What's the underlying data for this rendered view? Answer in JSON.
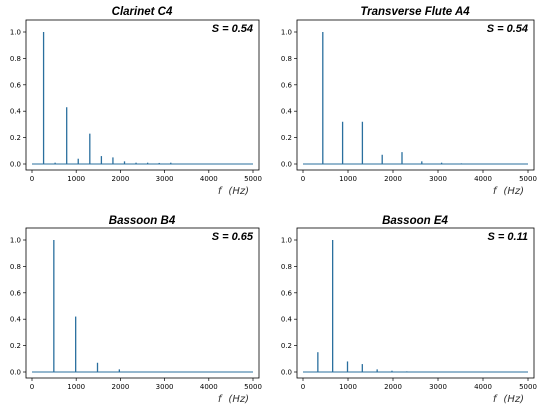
{
  "chart_data": [
    {
      "type": "line",
      "title": "Clarinet C4",
      "annotation": "S = 0.54",
      "xlabel_main": "f",
      "xlabel_unit": "(Hz)",
      "xlim": [
        0,
        5000
      ],
      "ylim": [
        0,
        1.0
      ],
      "xticks": [
        0,
        1000,
        2000,
        3000,
        4000,
        5000
      ],
      "yticks": [
        0.0,
        0.2,
        0.4,
        0.6,
        0.8,
        1.0
      ],
      "ytick_labels": [
        "0.0",
        "0.2",
        "0.4",
        "0.6",
        "0.8",
        "1.0"
      ],
      "peaks": {
        "x": [
          262,
          523,
          785,
          1046,
          1308,
          1570,
          1831,
          2093,
          2354,
          2616,
          2878,
          3140
        ],
        "y": [
          1.0,
          0.01,
          0.43,
          0.04,
          0.23,
          0.06,
          0.05,
          0.02,
          0.01,
          0.01,
          0.008,
          0.01
        ]
      },
      "color": "#2a6f9e"
    },
    {
      "type": "line",
      "title": "Transverse Flute A4",
      "annotation": "S = 0.54",
      "xlabel_main": "f",
      "xlabel_unit": "(Hz)",
      "xlim": [
        0,
        5000
      ],
      "ylim": [
        0,
        1.0
      ],
      "xticks": [
        0,
        1000,
        2000,
        3000,
        4000,
        5000
      ],
      "yticks": [
        0.0,
        0.2,
        0.4,
        0.6,
        0.8,
        1.0
      ],
      "ytick_labels": [
        "0.0",
        "0.2",
        "0.4",
        "0.6",
        "0.8",
        "1.0"
      ],
      "peaks": {
        "x": [
          440,
          880,
          1320,
          1760,
          2200,
          2640,
          3080,
          3520
        ],
        "y": [
          1.0,
          0.32,
          0.32,
          0.07,
          0.09,
          0.02,
          0.01,
          0.005
        ]
      },
      "color": "#2a6f9e"
    },
    {
      "type": "line",
      "title": "Bassoon B4",
      "annotation": "S = 0.65",
      "xlabel_main": "f",
      "xlabel_unit": "(Hz)",
      "xlim": [
        0,
        5000
      ],
      "ylim": [
        0,
        1.0
      ],
      "xticks": [
        0,
        1000,
        2000,
        3000,
        4000,
        5000
      ],
      "yticks": [
        0.0,
        0.2,
        0.4,
        0.6,
        0.8,
        1.0
      ],
      "ytick_labels": [
        "0.0",
        "0.2",
        "0.4",
        "0.6",
        "0.8",
        "1.0"
      ],
      "peaks": {
        "x": [
          494,
          988,
          1482,
          1976
        ],
        "y": [
          1.0,
          0.42,
          0.07,
          0.02
        ]
      },
      "color": "#2a6f9e"
    },
    {
      "type": "line",
      "title": "Bassoon E4",
      "annotation": "S = 0.11",
      "xlabel_main": "f",
      "xlabel_unit": "(Hz)",
      "xlim": [
        0,
        5000
      ],
      "ylim": [
        0,
        1.0
      ],
      "xticks": [
        0,
        1000,
        2000,
        3000,
        4000,
        5000
      ],
      "yticks": [
        0.0,
        0.2,
        0.4,
        0.6,
        0.8,
        1.0
      ],
      "ytick_labels": [
        "0.0",
        "0.2",
        "0.4",
        "0.6",
        "0.8",
        "1.0"
      ],
      "peaks": {
        "x": [
          330,
          659,
          989,
          1318,
          1648,
          1977,
          2307
        ],
        "y": [
          0.15,
          1.0,
          0.08,
          0.06,
          0.02,
          0.01,
          0.005
        ]
      },
      "color": "#2a6f9e"
    }
  ]
}
